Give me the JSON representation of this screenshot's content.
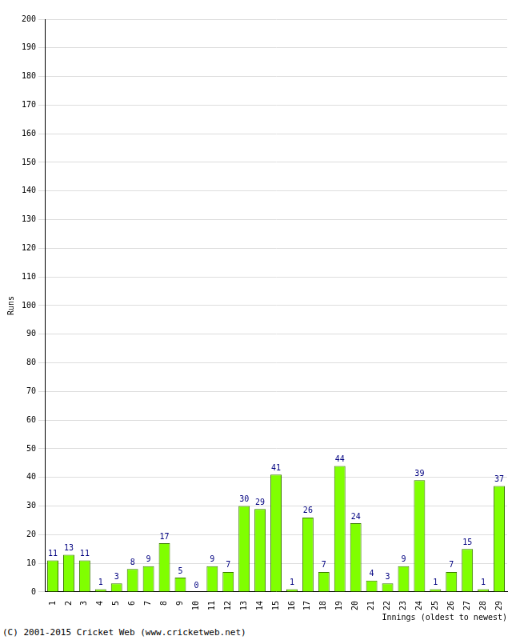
{
  "chart_data": {
    "type": "bar",
    "categories": [
      "1",
      "2",
      "3",
      "4",
      "5",
      "6",
      "7",
      "8",
      "9",
      "10",
      "11",
      "12",
      "13",
      "14",
      "15",
      "16",
      "17",
      "18",
      "19",
      "20",
      "21",
      "22",
      "23",
      "24",
      "25",
      "26",
      "27",
      "28",
      "29"
    ],
    "values": [
      11,
      13,
      11,
      1,
      3,
      8,
      9,
      17,
      5,
      0,
      9,
      7,
      30,
      29,
      41,
      1,
      26,
      7,
      44,
      24,
      4,
      3,
      9,
      39,
      1,
      7,
      15,
      1,
      37
    ],
    "color": "#80ff00",
    "x_label": "Innings (oldest to newest)",
    "y_label": "Runs",
    "ylim": [
      0,
      200
    ],
    "yticks": [
      0,
      10,
      20,
      30,
      40,
      50,
      60,
      70,
      80,
      90,
      100,
      110,
      120,
      130,
      140,
      150,
      160,
      170,
      180,
      190,
      200
    ],
    "grid": true,
    "data_labels": true,
    "annotations": [
      "(C) 2001-2015 Cricket Web (www.cricketweb.net)"
    ]
  }
}
